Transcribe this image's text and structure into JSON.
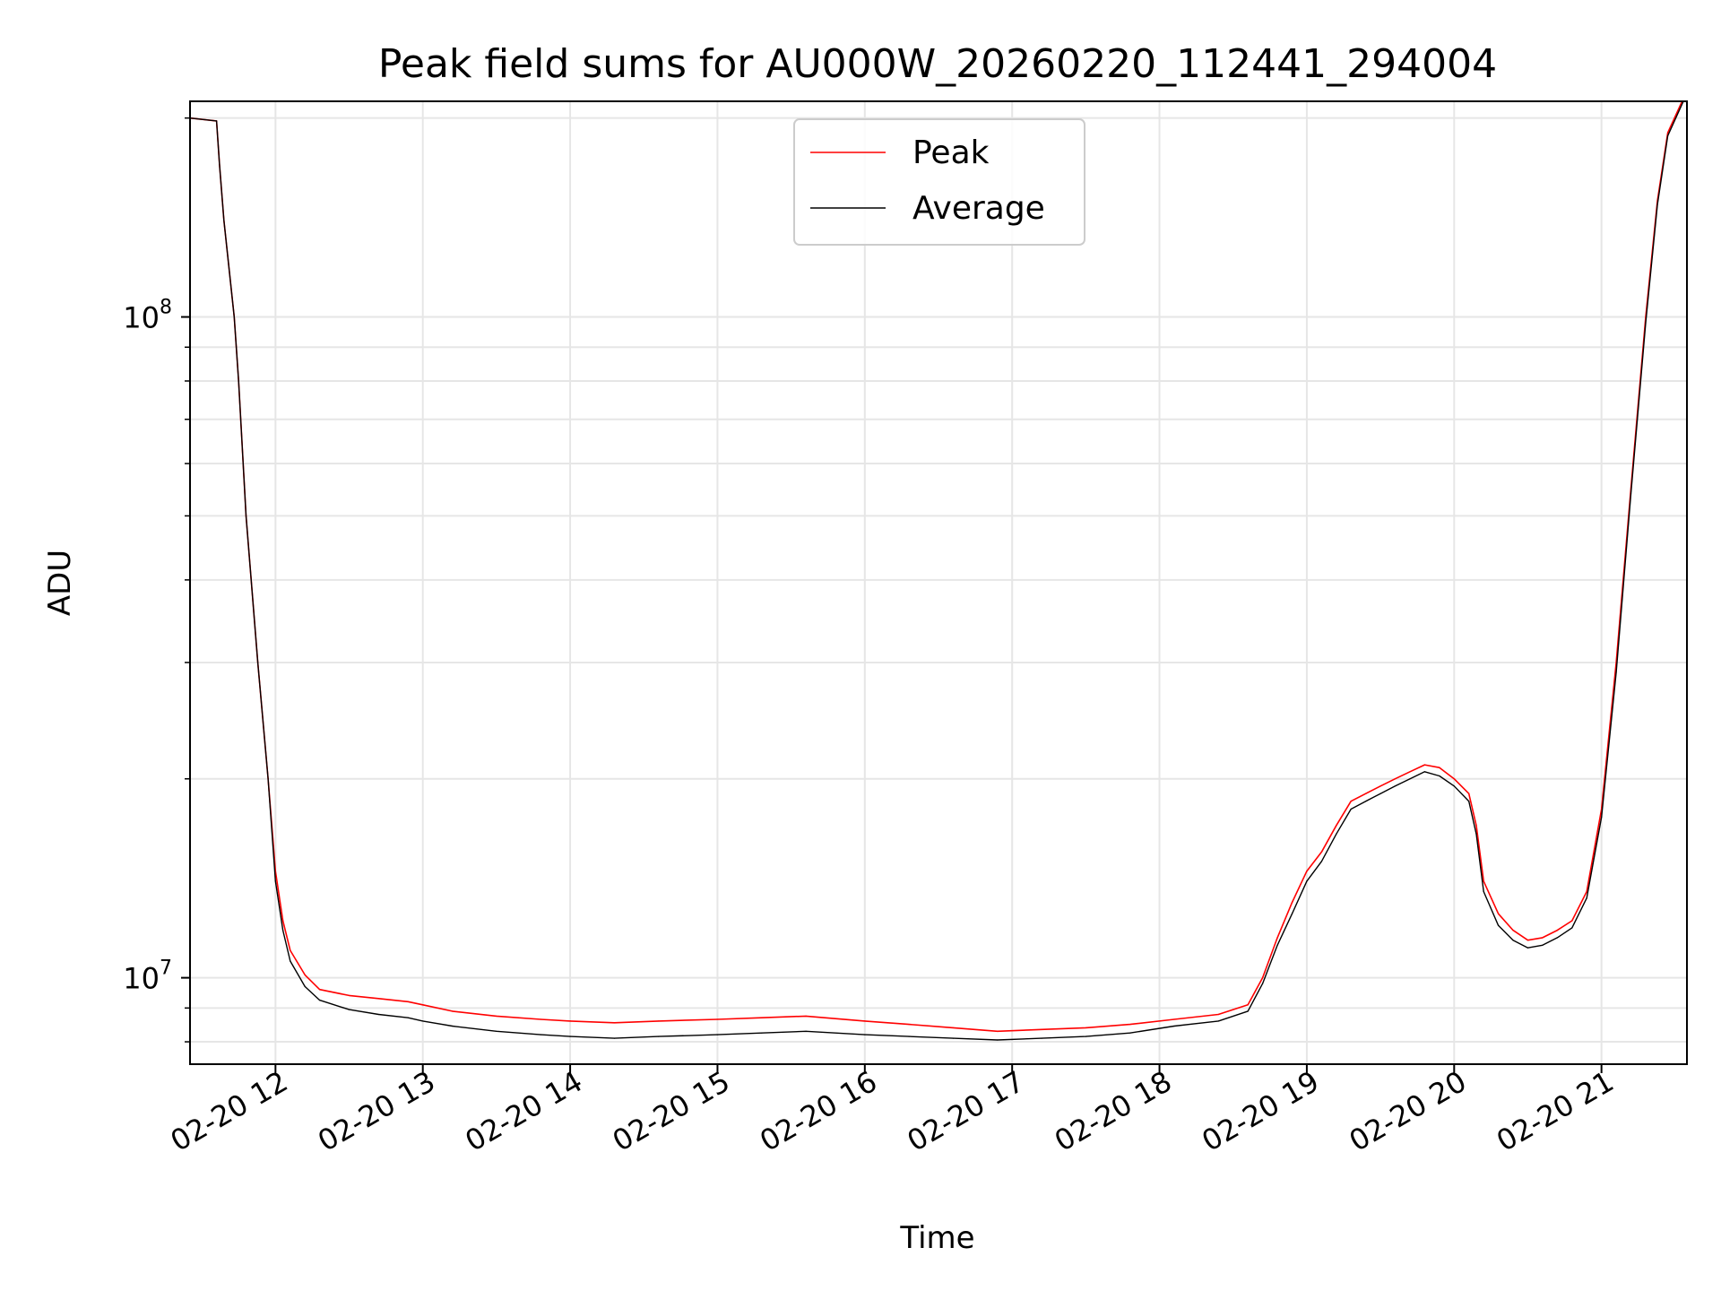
{
  "chart_data": {
    "type": "line",
    "title": "Peak field sums for AU000W_20260220_112441_294004",
    "xlabel": "Time",
    "ylabel": "ADU",
    "yscale": "log",
    "ylim": [
      7400000,
      212000000
    ],
    "xlim": [
      11.42,
      21.58
    ],
    "grid": true,
    "legend_position": "top-center",
    "x_ticks": [
      {
        "value": 12,
        "label": "02-20 12"
      },
      {
        "value": 13,
        "label": "02-20 13"
      },
      {
        "value": 14,
        "label": "02-20 14"
      },
      {
        "value": 15,
        "label": "02-20 15"
      },
      {
        "value": 16,
        "label": "02-20 16"
      },
      {
        "value": 17,
        "label": "02-20 17"
      },
      {
        "value": 18,
        "label": "02-20 18"
      },
      {
        "value": 19,
        "label": "02-20 19"
      },
      {
        "value": 20,
        "label": "02-20 20"
      },
      {
        "value": 21,
        "label": "02-20 21"
      }
    ],
    "y_ticks": [
      {
        "value": 10000000,
        "base": "10",
        "exp": "7"
      },
      {
        "value": 100000000,
        "base": "10",
        "exp": "8"
      }
    ],
    "x_unit": "hour of day on 2026-02-20",
    "series": [
      {
        "name": "Peak",
        "color": "#ff0000",
        "x": [
          11.42,
          11.6,
          11.62,
          11.65,
          11.72,
          11.75,
          11.8,
          11.88,
          11.95,
          12.0,
          12.05,
          12.1,
          12.2,
          12.3,
          12.5,
          12.7,
          12.9,
          13.0,
          13.2,
          13.5,
          13.8,
          14.0,
          14.3,
          14.6,
          15.0,
          15.3,
          15.6,
          16.0,
          16.3,
          16.6,
          16.9,
          17.2,
          17.5,
          17.8,
          18.1,
          18.4,
          18.6,
          18.7,
          18.8,
          18.9,
          19.0,
          19.1,
          19.2,
          19.3,
          19.4,
          19.5,
          19.6,
          19.7,
          19.8,
          19.9,
          20.0,
          20.1,
          20.15,
          20.2,
          20.3,
          20.4,
          20.5,
          20.6,
          20.7,
          20.8,
          20.9,
          21.0,
          21.1,
          21.2,
          21.3,
          21.38,
          21.45,
          21.58
        ],
        "y": [
          200000000,
          198000000,
          170000000,
          140000000,
          100000000,
          80000000,
          50000000,
          30000000,
          20000000,
          14500000,
          12200000,
          11000000,
          10100000,
          9600000,
          9400000,
          9300000,
          9200000,
          9100000,
          8900000,
          8750000,
          8650000,
          8600000,
          8550000,
          8600000,
          8650000,
          8700000,
          8750000,
          8600000,
          8500000,
          8400000,
          8300000,
          8350000,
          8400000,
          8500000,
          8650000,
          8800000,
          9100000,
          10000000,
          11500000,
          13000000,
          14500000,
          15500000,
          17000000,
          18500000,
          19000000,
          19500000,
          20000000,
          20500000,
          21000000,
          20800000,
          20000000,
          19000000,
          17000000,
          14000000,
          12500000,
          11800000,
          11400000,
          11500000,
          11800000,
          12200000,
          13500000,
          18000000,
          30000000,
          55000000,
          100000000,
          150000000,
          190000000,
          220000000
        ]
      },
      {
        "name": "Average",
        "color": "#000000",
        "x": [
          11.42,
          11.6,
          11.62,
          11.65,
          11.72,
          11.75,
          11.8,
          11.88,
          11.95,
          12.0,
          12.05,
          12.1,
          12.2,
          12.3,
          12.5,
          12.7,
          12.9,
          13.0,
          13.2,
          13.5,
          13.8,
          14.0,
          14.3,
          14.6,
          15.0,
          15.3,
          15.6,
          16.0,
          16.3,
          16.6,
          16.9,
          17.2,
          17.5,
          17.8,
          18.1,
          18.4,
          18.6,
          18.7,
          18.8,
          18.9,
          19.0,
          19.1,
          19.2,
          19.3,
          19.4,
          19.5,
          19.6,
          19.7,
          19.8,
          19.9,
          20.0,
          20.1,
          20.15,
          20.2,
          20.3,
          20.4,
          20.5,
          20.6,
          20.7,
          20.8,
          20.9,
          21.0,
          21.1,
          21.2,
          21.3,
          21.38,
          21.45,
          21.58
        ],
        "y": [
          200000000,
          198000000,
          170000000,
          140000000,
          100000000,
          80000000,
          50000000,
          30000000,
          20000000,
          14000000,
          11800000,
          10600000,
          9700000,
          9250000,
          8950000,
          8800000,
          8700000,
          8600000,
          8450000,
          8300000,
          8200000,
          8150000,
          8100000,
          8150000,
          8200000,
          8250000,
          8300000,
          8200000,
          8150000,
          8100000,
          8050000,
          8100000,
          8150000,
          8250000,
          8450000,
          8600000,
          8900000,
          9800000,
          11200000,
          12500000,
          14000000,
          15000000,
          16500000,
          18000000,
          18500000,
          19000000,
          19500000,
          20000000,
          20500000,
          20200000,
          19500000,
          18500000,
          16500000,
          13500000,
          12000000,
          11400000,
          11100000,
          11200000,
          11500000,
          11900000,
          13200000,
          17500000,
          29000000,
          54000000,
          98000000,
          148000000,
          188000000,
          218000000
        ]
      }
    ]
  }
}
